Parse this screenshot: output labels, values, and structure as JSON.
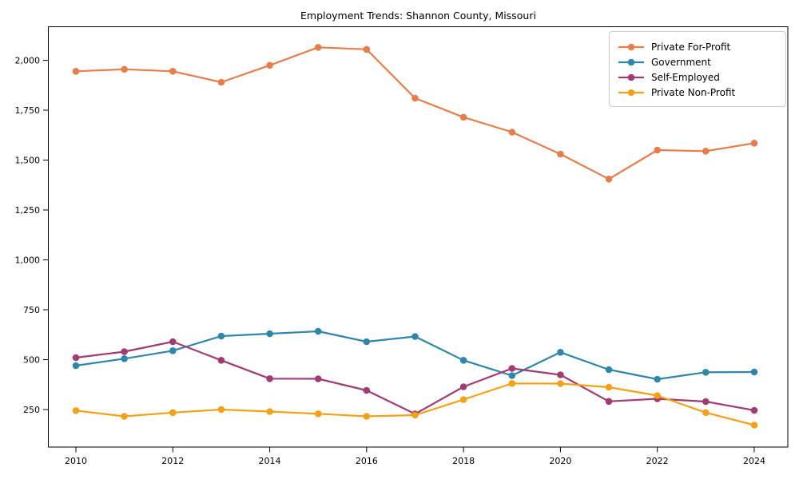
{
  "figure": {
    "background": "#ffffff",
    "axes_edge_color": "#000000",
    "tick_label_color": "#000000",
    "title_color": "#000000"
  },
  "chart_data": {
    "type": "line",
    "title": "Employment Trends: Shannon County, Missouri",
    "xlabel": "",
    "ylabel": "",
    "grid": false,
    "legend_position": "upper right",
    "x": [
      2010,
      2011,
      2012,
      2013,
      2014,
      2015,
      2016,
      2017,
      2018,
      2019,
      2020,
      2021,
      2022,
      2023,
      2024
    ],
    "x_ticks": [
      2010,
      2012,
      2014,
      2016,
      2018,
      2020,
      2022,
      2024
    ],
    "x_tick_labels": [
      "2010",
      "2012",
      "2014",
      "2016",
      "2018",
      "2020",
      "2022",
      "2024"
    ],
    "y_ticks": [
      250,
      500,
      750,
      1000,
      1250,
      1500,
      1750,
      2000
    ],
    "y_tick_labels": [
      "250",
      "500",
      "750",
      "1,000",
      "1,250",
      "1,500",
      "1,750",
      "2,000"
    ],
    "xlim": [
      2009.4,
      2024.75
    ],
    "ylim": [
      75,
      2170
    ],
    "series": [
      {
        "name": "Private For-Profit",
        "color": "#E87D4C",
        "values": [
          1945,
          1955,
          1945,
          1890,
          1975,
          2065,
          2055,
          1810,
          1715,
          1640,
          1530,
          1405,
          1550,
          1545,
          1585
        ]
      },
      {
        "name": "Government",
        "color": "#2E86AB",
        "values": [
          470,
          505,
          545,
          618,
          630,
          642,
          590,
          616,
          497,
          420,
          537,
          450,
          402,
          437,
          438
        ]
      },
      {
        "name": "Self-Employed",
        "color": "#A23B72",
        "values": [
          510,
          540,
          590,
          497,
          405,
          404,
          346,
          228,
          364,
          456,
          424,
          291,
          304,
          290,
          246
        ]
      },
      {
        "name": "Private Non-Profit",
        "color": "#F5A118",
        "values": [
          245,
          216,
          235,
          250,
          240,
          229,
          216,
          222,
          300,
          381,
          380,
          362,
          320,
          235,
          172
        ]
      }
    ]
  }
}
